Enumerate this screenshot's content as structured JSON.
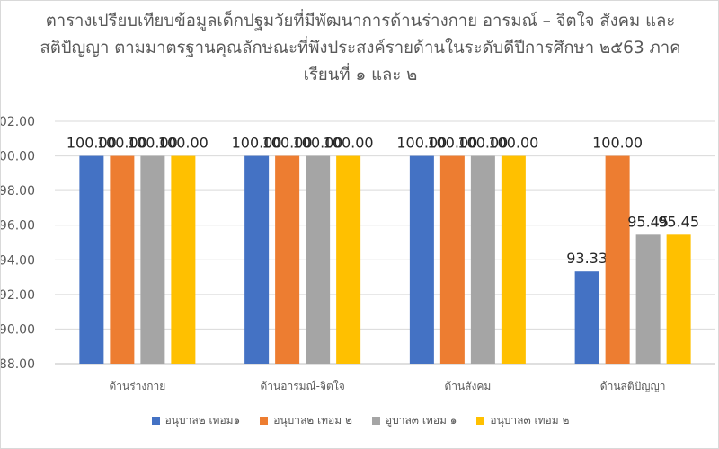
{
  "chart_data": {
    "type": "bar",
    "title_lines": [
      "ตารางเปรียบเทียบข้อมูลเด็กปฐมวัยที่มีพัฒนาการด้านร่างกาย  อารมณ์ – จิตใจ สังคม และ",
      "สติปัญญา ตามมาตรฐานคุณลักษณะที่พึงประสงค์รายด้านในระดับดีปีการศึกษา  ๒๕63 ภาค",
      "เรียนที่ ๑ และ ๒"
    ],
    "categories": [
      "ด้านร่างกาย",
      "ด้านอารมณ์-จิตใจ",
      "ด้านสังคม",
      "ด้านสติปัญญา"
    ],
    "series": [
      {
        "name": "อนุบาล๒ เทอม๑",
        "color": "#4472C4",
        "values": [
          100.0,
          100.0,
          100.0,
          93.33
        ],
        "labels": [
          "100.00",
          "100.00",
          "100.00",
          "93.33"
        ]
      },
      {
        "name": "อนุบาล๒ เทอม ๒",
        "color": "#ED7D31",
        "values": [
          100.0,
          100.0,
          100.0,
          100.0
        ],
        "labels": [
          "100.00",
          "100.00",
          "100.00",
          "100.00"
        ]
      },
      {
        "name": "อูบาล๓ เทอม ๑",
        "color": "#A5A5A5",
        "values": [
          100.0,
          100.0,
          100.0,
          95.45
        ],
        "labels": [
          "100.00",
          "100.00",
          "100.00",
          "95.45"
        ]
      },
      {
        "name": "อนุบาล๓ เทอม ๒",
        "color": "#FFC000",
        "values": [
          100.0,
          100.0,
          100.0,
          95.45
        ],
        "labels": [
          "100.00",
          "100.00",
          "100.00",
          "95.45"
        ]
      }
    ],
    "yticks": [
      "88.00",
      "90.00",
      "92.00",
      "94.00",
      "96.00",
      "98.00",
      "100.00",
      "102.00"
    ],
    "ylim": [
      88,
      102
    ],
    "grid": true,
    "legend_position": "bottom"
  }
}
